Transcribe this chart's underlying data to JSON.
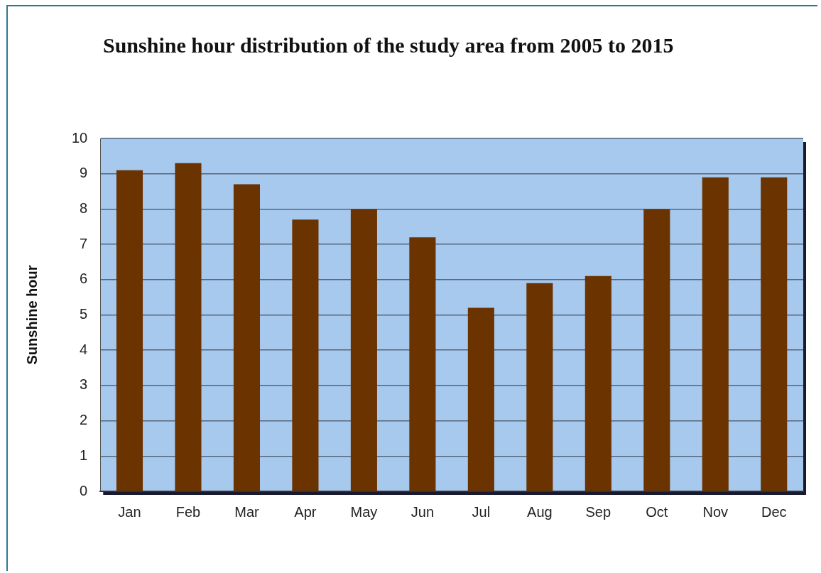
{
  "chart_data": {
    "type": "bar",
    "title": "Sunshine hour distribution of the study area from 2005 to 2015",
    "ylabel": "Sunshine hour",
    "categories": [
      "Jan",
      "Feb",
      "Mar",
      "Apr",
      "May",
      "Jun",
      "Jul",
      "Aug",
      "Sep",
      "Oct",
      "Nov",
      "Dec"
    ],
    "values": [
      9.1,
      9.3,
      8.7,
      7.7,
      8.0,
      7.2,
      5.2,
      5.9,
      6.1,
      8.0,
      8.9,
      8.9
    ],
    "color": "#6b3300",
    "ylim": [
      0,
      10
    ],
    "yticks": [
      0,
      1,
      2,
      3,
      4,
      5,
      6,
      7,
      8,
      9,
      10
    ],
    "grid": "y",
    "legend": false
  }
}
